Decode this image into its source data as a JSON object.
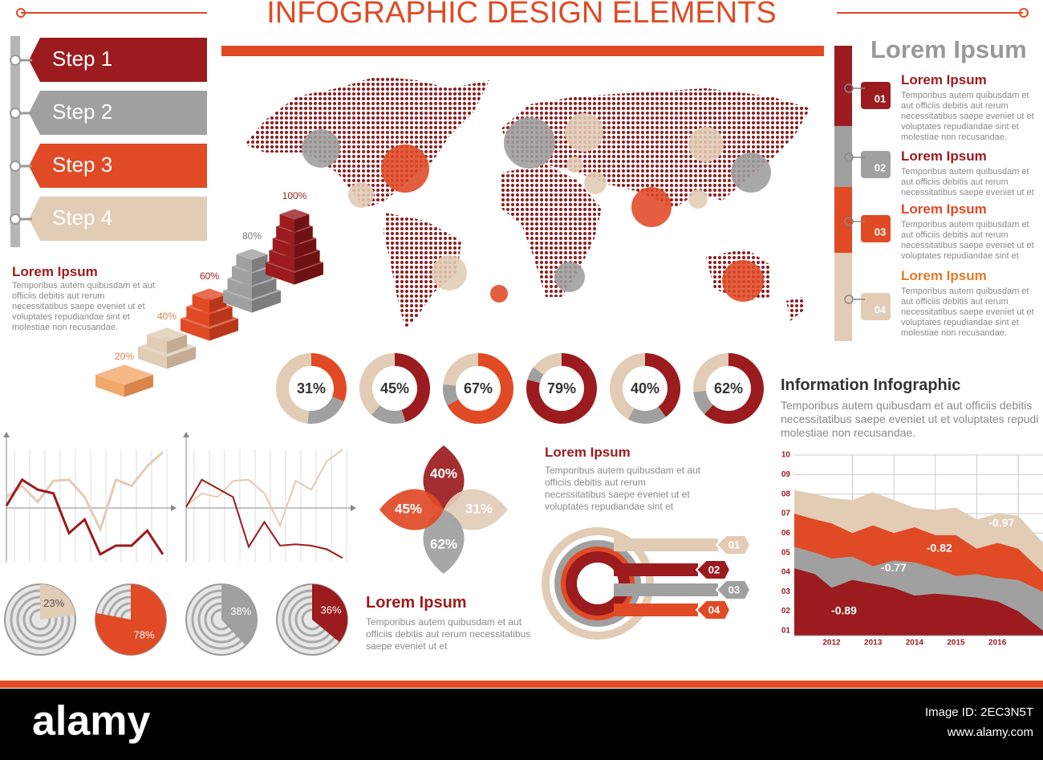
{
  "header": {
    "title": "INFOGRAPHIC DESIGN ELEMENTS"
  },
  "steps": [
    "Step 1",
    "Step 2",
    "Step 3",
    "Step 4"
  ],
  "pyramid": {
    "heading": "Lorem Ipsum",
    "text": "Temporibus autem quibusdam et aut officiis debitis aut rerum necessitatibus saepe eveniet ut et voluptates repudiandae sint et molestiae non recusandae.",
    "values": [
      20,
      40,
      60,
      80,
      100
    ],
    "value_labels": [
      "20%",
      "40%",
      "60%",
      "80%",
      "100%"
    ]
  },
  "donuts": {
    "values": [
      31,
      45,
      67,
      79,
      40,
      62
    ],
    "value_labels": [
      "31%",
      "45%",
      "67%",
      "79%",
      "40%",
      "62%"
    ]
  },
  "side_panel": {
    "title": "Lorem Ipsum",
    "items": [
      {
        "number": "01",
        "heading": "Lorem Ipsum",
        "text": "Temporibus autem quibusdam et aut officiis debitis aut rerum necessitatibus saepe eveniet ut et voluptates repudiandae sint et molestiae non recusandae."
      },
      {
        "number": "02",
        "heading": "Lorem Ipsum",
        "text": "Temporibus autem quibusdam et aut officiis debitis aut rerum necessitatibus saepe eveniet ut et"
      },
      {
        "number": "03",
        "heading": "Lorem Ipsum",
        "text": "Temporibus autem quibusdam et aut officiis debitis aut rerum necessitatibus saepe eveniet ut et voluptates repudiandae sint et"
      },
      {
        "number": "04",
        "heading": "Lorem Ipsum",
        "text": "Temporibus autem quibusdam et aut officiis debitis aut rerum necessitatibus saepe eveniet ut et voluptates repudiandae sint et molestiae non recusandae."
      }
    ]
  },
  "info": {
    "title": "Information Infographic",
    "text": "Temporibus autem quibusdam et aut officiis debitis necessitatibus saepe eveniet ut et voluptates repudi molestiae non recusandae."
  },
  "petals": {
    "values": [
      40,
      31,
      62,
      45
    ],
    "value_labels": [
      "40%",
      "31%",
      "62%",
      "45%"
    ]
  },
  "middle_text": {
    "heading": "Lorem Ipsum",
    "text": "Temporibus autem quibusdam et aut officiis debitis aut rerum necessitatibus saepe eveniet ut et voluptates repudiandae sint et"
  },
  "bottom_text": {
    "heading": "Lorem Ipsum",
    "text": "Temporibus autem quibusdam et aut officiis debitis aut rerum necessitatibus saepe eveniet ut et"
  },
  "target": {
    "labels": [
      "01",
      "02",
      "03",
      "04"
    ]
  },
  "pies": {
    "values": [
      23,
      78,
      38,
      36
    ],
    "value_labels": [
      "23%",
      "78%",
      "38%",
      "36%"
    ]
  },
  "chart_data": [
    {
      "type": "line",
      "ylim": [
        0,
        10
      ],
      "series": [
        {
          "values": [
            4.5,
            6.6,
            5.8,
            5.5,
            2.3,
            3.4,
            0.6,
            1.3,
            1.3,
            2.5,
            0.6
          ]
        },
        {
          "values": [
            5.2,
            6.1,
            4.8,
            6.5,
            6.6,
            5.2,
            2.6,
            6.6,
            6.1,
            7.7,
            8.8
          ]
        }
      ]
    },
    {
      "type": "line",
      "ylim": [
        0,
        10
      ],
      "series": [
        {
          "values": [
            4.4,
            6.6,
            5.9,
            5.2,
            1.2,
            3.2,
            1.3,
            1.4,
            1.3,
            1.0,
            0.3
          ]
        },
        {
          "values": [
            4.5,
            5.5,
            5.2,
            6.5,
            6.6,
            5.5,
            2.9,
            6.5,
            5.8,
            8.1,
            9.0
          ]
        }
      ]
    },
    {
      "type": "area",
      "x": [
        2011.1,
        2011.6,
        2012,
        2012.5,
        2013,
        2013.5,
        2014,
        2014.5,
        2015,
        2015.5,
        2016,
        2016.5,
        2017.1
      ],
      "xlim": [
        2011.1,
        2017.1
      ],
      "xticks": [
        2012,
        2013,
        2014,
        2015,
        2016
      ],
      "ylim": [
        0.75,
        10
      ],
      "yticks": [
        {
          "value": 1,
          "label": "01"
        },
        {
          "value": 2,
          "label": "02"
        },
        {
          "value": 3,
          "label": "03"
        },
        {
          "value": 4,
          "label": "04"
        },
        {
          "value": 5,
          "label": "05"
        },
        {
          "value": 6,
          "label": "06"
        },
        {
          "value": 7,
          "label": "07"
        },
        {
          "value": 8,
          "label": "08"
        },
        {
          "value": 9,
          "label": "09"
        },
        10
      ],
      "grid": true,
      "series": [
        {
          "values": [
            8.2,
            8.0,
            7.8,
            7.7,
            8.1,
            7.7,
            7.3,
            7.2,
            7.3,
            6.7,
            7.0,
            6.9,
            5.5
          ]
        },
        {
          "values": [
            7.0,
            6.7,
            6.5,
            6.0,
            6.4,
            6.0,
            6.3,
            5.9,
            5.9,
            5.2,
            5.5,
            5.2,
            4.0
          ]
        },
        {
          "values": [
            5.3,
            5.0,
            4.7,
            4.8,
            4.3,
            4.6,
            4.5,
            4.2,
            3.8,
            3.9,
            3.7,
            3.6,
            3.0
          ]
        },
        {
          "values": [
            4.2,
            3.9,
            3.2,
            3.6,
            3.4,
            3.2,
            2.8,
            2.9,
            2.8,
            2.7,
            2.5,
            2.0,
            1.0
          ]
        }
      ],
      "annotations": [
        "-0.89",
        "-0.77",
        "-0.82",
        "-0.97"
      ]
    }
  ],
  "footer": {
    "brand": "alamy",
    "image_id": "Image ID: 2EC3N5T",
    "url": "www.alamy.com"
  }
}
